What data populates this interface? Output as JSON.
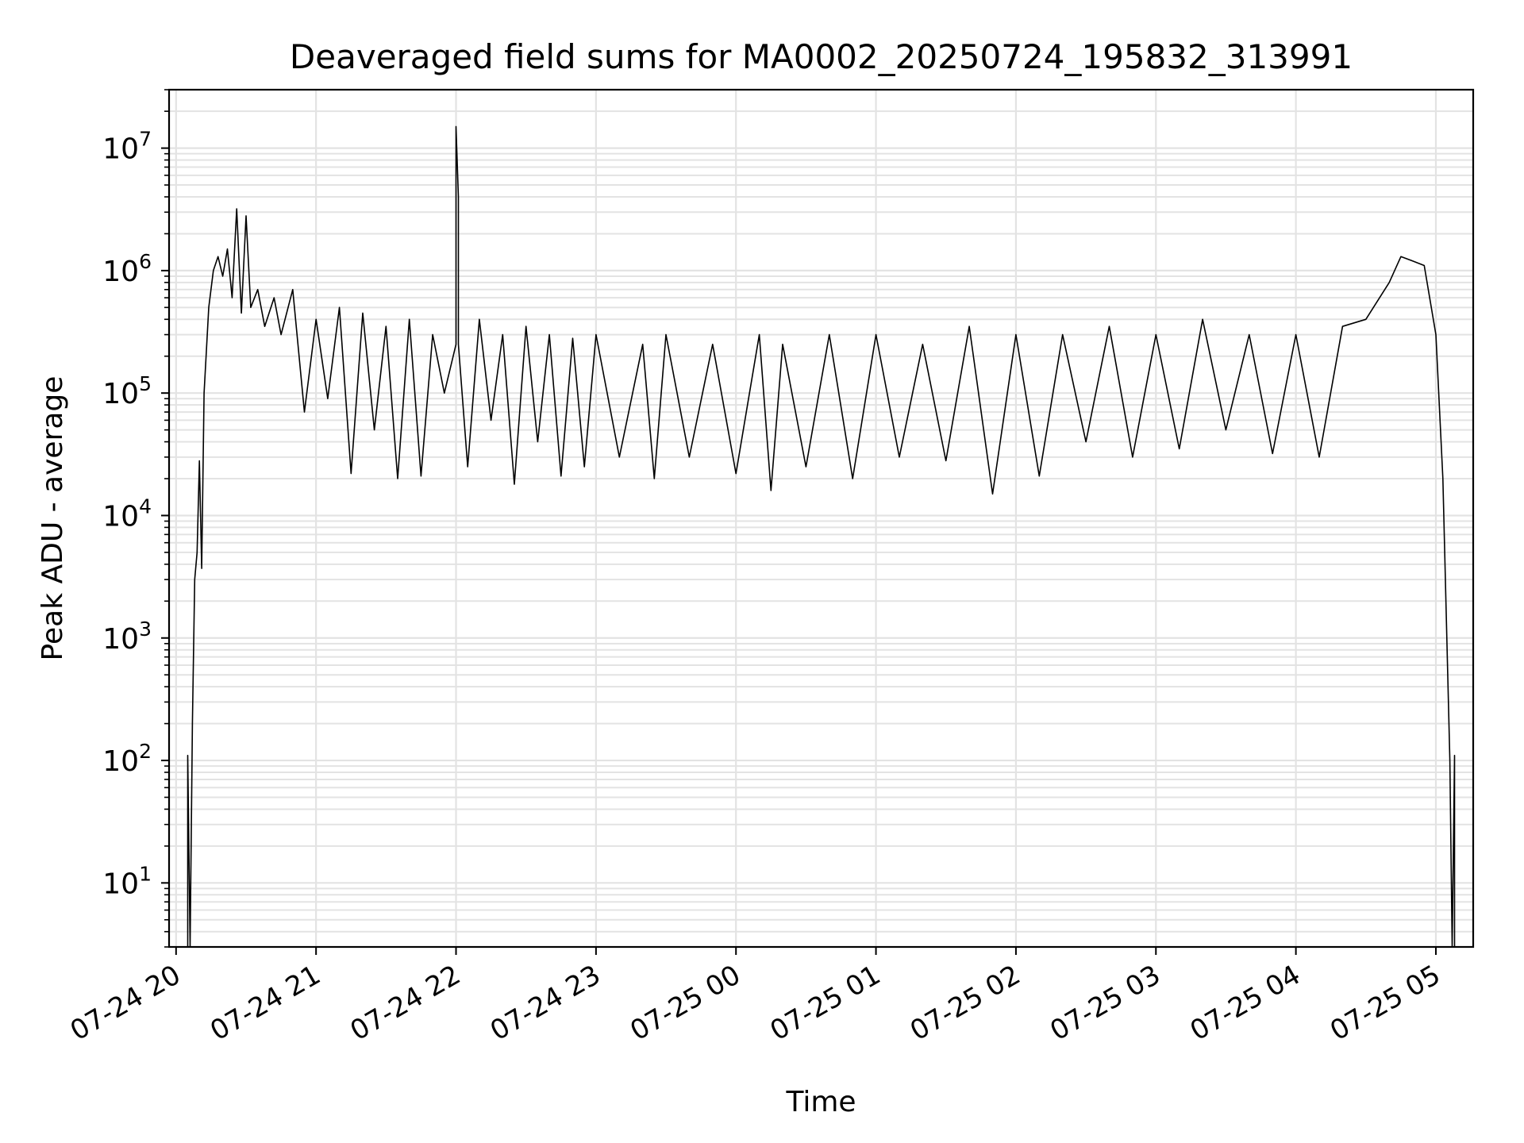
{
  "chart_data": {
    "type": "line",
    "title": "Deaveraged field sums for MA0002_20250724_195832_313991",
    "xlabel": "Time",
    "ylabel": "Peak ADU - average",
    "yscale": "log",
    "ylim": [
      3,
      30000000
    ],
    "xlim": [
      "2025-07-24 19:57",
      "2025-07-25 05:16"
    ],
    "grid": true,
    "series_color": "#000000",
    "x_ticks": [
      "07-24 20",
      "07-24 21",
      "07-24 22",
      "07-24 23",
      "07-25 00",
      "07-25 01",
      "07-25 02",
      "07-25 03",
      "07-25 04",
      "07-25 05"
    ],
    "y_ticks": [
      {
        "base": "10",
        "exp": "1",
        "value": 10
      },
      {
        "base": "10",
        "exp": "2",
        "value": 100
      },
      {
        "base": "10",
        "exp": "3",
        "value": 1000
      },
      {
        "base": "10",
        "exp": "4",
        "value": 10000
      },
      {
        "base": "10",
        "exp": "5",
        "value": 100000
      },
      {
        "base": "10",
        "exp": "6",
        "value": 1000000
      },
      {
        "base": "10",
        "exp": "7",
        "value": 10000000
      }
    ],
    "series": [
      {
        "points": [
          [
            "2025-07-24 20:05",
            3
          ],
          [
            "2025-07-24 20:05",
            110
          ],
          [
            "2025-07-24 20:06",
            3
          ],
          [
            "2025-07-24 20:07",
            200
          ],
          [
            "2025-07-24 20:08",
            3000
          ],
          [
            "2025-07-24 20:09",
            5000
          ],
          [
            "2025-07-24 20:10",
            28000
          ],
          [
            "2025-07-24 20:11",
            3700
          ],
          [
            "2025-07-24 20:12",
            100000
          ],
          [
            "2025-07-24 20:14",
            500000
          ],
          [
            "2025-07-24 20:16",
            1000000
          ],
          [
            "2025-07-24 20:18",
            1300000
          ],
          [
            "2025-07-24 20:20",
            900000
          ],
          [
            "2025-07-24 20:22",
            1500000
          ],
          [
            "2025-07-24 20:24",
            600000
          ],
          [
            "2025-07-24 20:26",
            3200000
          ],
          [
            "2025-07-24 20:28",
            450000
          ],
          [
            "2025-07-24 20:30",
            2800000
          ],
          [
            "2025-07-24 20:32",
            500000
          ],
          [
            "2025-07-24 20:35",
            700000
          ],
          [
            "2025-07-24 20:38",
            350000
          ],
          [
            "2025-07-24 20:42",
            600000
          ],
          [
            "2025-07-24 20:45",
            300000
          ],
          [
            "2025-07-24 20:50",
            700000
          ],
          [
            "2025-07-24 20:55",
            70000
          ],
          [
            "2025-07-24 21:00",
            400000
          ],
          [
            "2025-07-24 21:05",
            90000
          ],
          [
            "2025-07-24 21:10",
            500000
          ],
          [
            "2025-07-24 21:15",
            22000
          ],
          [
            "2025-07-24 21:20",
            450000
          ],
          [
            "2025-07-24 21:25",
            50000
          ],
          [
            "2025-07-24 21:30",
            350000
          ],
          [
            "2025-07-24 21:35",
            20000
          ],
          [
            "2025-07-24 21:40",
            400000
          ],
          [
            "2025-07-24 21:45",
            21000
          ],
          [
            "2025-07-24 21:50",
            300000
          ],
          [
            "2025-07-24 21:55",
            100000
          ],
          [
            "2025-07-24 22:00",
            250000
          ],
          [
            "2025-07-24 22:00",
            15000000
          ],
          [
            "2025-07-24 22:01",
            4000000
          ],
          [
            "2025-07-24 22:01",
            250000
          ],
          [
            "2025-07-24 22:05",
            25000
          ],
          [
            "2025-07-24 22:10",
            400000
          ],
          [
            "2025-07-24 22:15",
            60000
          ],
          [
            "2025-07-24 22:20",
            300000
          ],
          [
            "2025-07-24 22:25",
            18000
          ],
          [
            "2025-07-24 22:30",
            350000
          ],
          [
            "2025-07-24 22:35",
            40000
          ],
          [
            "2025-07-24 22:40",
            300000
          ],
          [
            "2025-07-24 22:45",
            21000
          ],
          [
            "2025-07-24 22:50",
            280000
          ],
          [
            "2025-07-24 22:55",
            25000
          ],
          [
            "2025-07-24 23:00",
            300000
          ],
          [
            "2025-07-24 23:10",
            30000
          ],
          [
            "2025-07-24 23:20",
            250000
          ],
          [
            "2025-07-24 23:25",
            20000
          ],
          [
            "2025-07-24 23:30",
            300000
          ],
          [
            "2025-07-24 23:40",
            30000
          ],
          [
            "2025-07-24 23:50",
            250000
          ],
          [
            "2025-07-25 00:00",
            22000
          ],
          [
            "2025-07-25 00:10",
            300000
          ],
          [
            "2025-07-25 00:15",
            16000
          ],
          [
            "2025-07-25 00:20",
            250000
          ],
          [
            "2025-07-25 00:30",
            25000
          ],
          [
            "2025-07-25 00:40",
            300000
          ],
          [
            "2025-07-25 00:50",
            20000
          ],
          [
            "2025-07-25 01:00",
            300000
          ],
          [
            "2025-07-25 01:10",
            30000
          ],
          [
            "2025-07-25 01:20",
            250000
          ],
          [
            "2025-07-25 01:30",
            28000
          ],
          [
            "2025-07-25 01:40",
            350000
          ],
          [
            "2025-07-25 01:50",
            15000
          ],
          [
            "2025-07-25 02:00",
            300000
          ],
          [
            "2025-07-25 02:10",
            21000
          ],
          [
            "2025-07-25 02:20",
            300000
          ],
          [
            "2025-07-25 02:30",
            40000
          ],
          [
            "2025-07-25 02:40",
            350000
          ],
          [
            "2025-07-25 02:50",
            30000
          ],
          [
            "2025-07-25 03:00",
            300000
          ],
          [
            "2025-07-25 03:10",
            35000
          ],
          [
            "2025-07-25 03:20",
            400000
          ],
          [
            "2025-07-25 03:30",
            50000
          ],
          [
            "2025-07-25 03:40",
            300000
          ],
          [
            "2025-07-25 03:50",
            32000
          ],
          [
            "2025-07-25 04:00",
            300000
          ],
          [
            "2025-07-25 04:10",
            30000
          ],
          [
            "2025-07-25 04:20",
            350000
          ],
          [
            "2025-07-25 04:30",
            400000
          ],
          [
            "2025-07-25 04:40",
            800000
          ],
          [
            "2025-07-25 04:45",
            1300000
          ],
          [
            "2025-07-25 04:50",
            1200000
          ],
          [
            "2025-07-25 04:55",
            1100000
          ],
          [
            "2025-07-25 05:00",
            300000
          ],
          [
            "2025-07-25 05:03",
            20000
          ],
          [
            "2025-07-25 05:06",
            100
          ],
          [
            "2025-07-25 05:07",
            3
          ],
          [
            "2025-07-25 05:08",
            110
          ],
          [
            "2025-07-25 05:08",
            3
          ]
        ]
      }
    ]
  }
}
